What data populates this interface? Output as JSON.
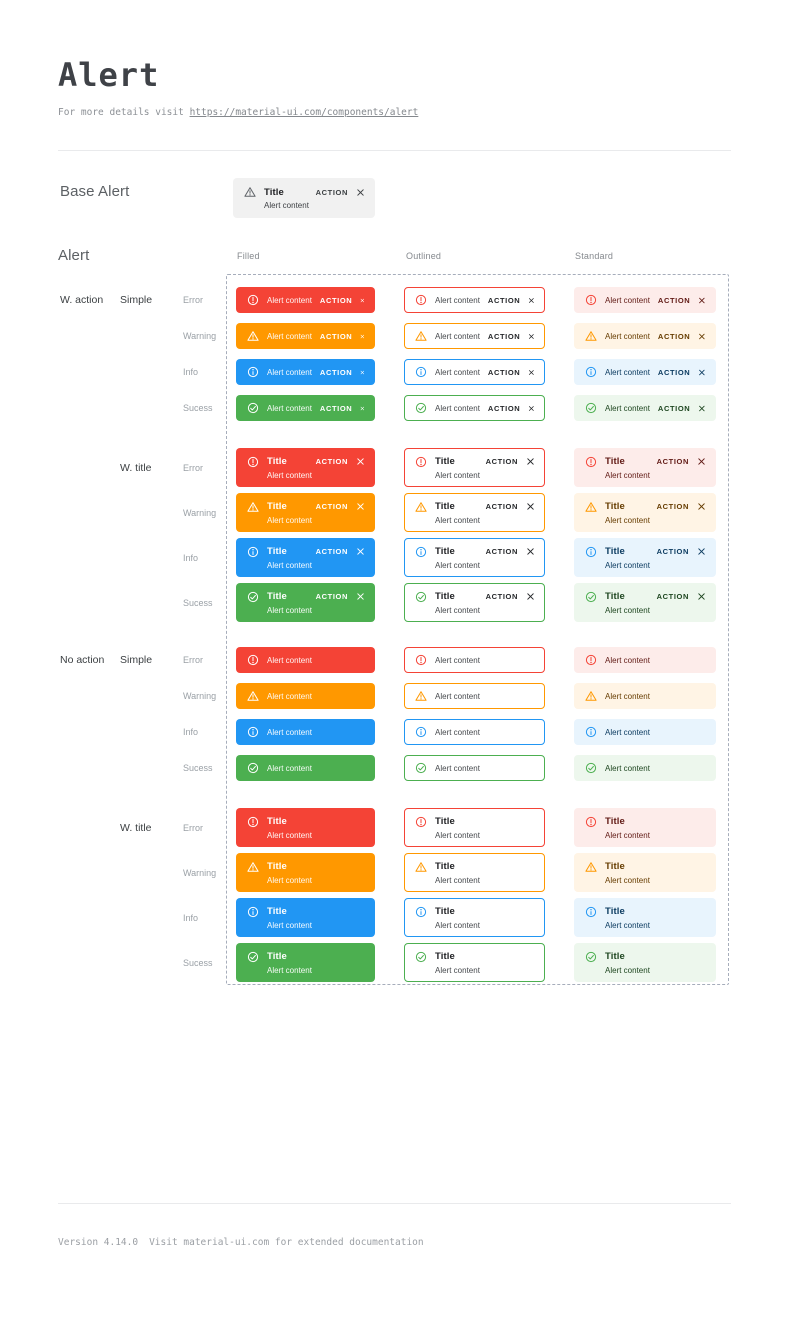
{
  "header": {
    "title": "Alert",
    "subtitle_prefix": "For more details visit ",
    "subtitle_link": "https://material-ui.com/components/alert"
  },
  "sections": {
    "base_alert_label": "Base Alert",
    "alert_label": "Alert"
  },
  "columns": [
    "Filled",
    "Outlined",
    "Standard"
  ],
  "texts": {
    "title": "Title",
    "content": "Alert content",
    "action": "ACTION"
  },
  "groups": [
    {
      "action_label": "W. action",
      "type_label": "Simple",
      "with_title": false,
      "with_action": true
    },
    {
      "action_label": "",
      "type_label": "W. title",
      "with_title": true,
      "with_action": true
    },
    {
      "action_label": "No action",
      "type_label": "Simple",
      "with_title": false,
      "with_action": false
    },
    {
      "action_label": "",
      "type_label": "W. title",
      "with_title": true,
      "with_action": false
    }
  ],
  "severities": [
    {
      "name": "error",
      "label": "Error",
      "main": "#f44336",
      "standard_bg": "#fdecea",
      "standard_text": "#611a15"
    },
    {
      "name": "warning",
      "label": "Warning",
      "main": "#ff9800",
      "standard_bg": "#fff4e5",
      "standard_text": "#663c00"
    },
    {
      "name": "info",
      "label": "Info",
      "main": "#2196f3",
      "standard_bg": "#e8f4fd",
      "standard_text": "#0d3c61"
    },
    {
      "name": "success",
      "label": "Sucess",
      "main": "#4caf50",
      "standard_bg": "#edf7ed",
      "standard_text": "#1e4620"
    }
  ],
  "variants": [
    "filled",
    "outlined",
    "standard"
  ],
  "variant_styles": {
    "filled": {
      "fg": "rgba(255,255,255,0.95)",
      "title": "#ffffff",
      "act": "#ffffff"
    },
    "outlined": {
      "bg": "#ffffff",
      "fg": "#46494d",
      "title": "#202124",
      "act": "#26282b"
    }
  },
  "base_alert": {
    "bg": "#f1f1f1",
    "icon_color": "#5f6368",
    "text_color": "#3e4145",
    "title_color": "#202124",
    "action_color": "#3c4043"
  },
  "panel": {
    "border_color": "#a6adbb"
  },
  "footer": {
    "version": "Version 4.14.0",
    "note": "Visit material-ui.com for extended documentation"
  }
}
